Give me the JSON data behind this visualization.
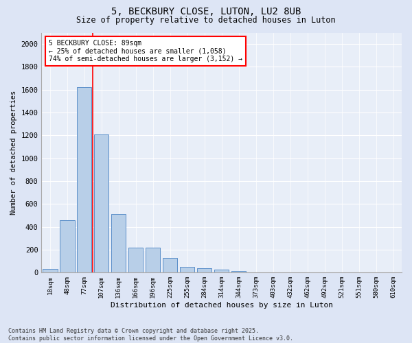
{
  "title1": "5, BECKBURY CLOSE, LUTON, LU2 8UB",
  "title2": "Size of property relative to detached houses in Luton",
  "xlabel": "Distribution of detached houses by size in Luton",
  "ylabel": "Number of detached properties",
  "categories": [
    "18sqm",
    "48sqm",
    "77sqm",
    "107sqm",
    "136sqm",
    "166sqm",
    "196sqm",
    "225sqm",
    "255sqm",
    "284sqm",
    "314sqm",
    "344sqm",
    "373sqm",
    "403sqm",
    "432sqm",
    "462sqm",
    "492sqm",
    "521sqm",
    "551sqm",
    "580sqm",
    "610sqm"
  ],
  "values": [
    35,
    460,
    1620,
    1210,
    510,
    220,
    220,
    130,
    50,
    40,
    25,
    15,
    0,
    0,
    0,
    0,
    0,
    0,
    0,
    0,
    0
  ],
  "bar_color": "#b8cfe8",
  "bar_edge_color": "#5b8fc9",
  "vline_color": "red",
  "vline_pos": 2.5,
  "annotation_title": "5 BECKBURY CLOSE: 89sqm",
  "annotation_line1": "← 25% of detached houses are smaller (1,058)",
  "annotation_line2": "74% of semi-detached houses are larger (3,152) →",
  "ylim": [
    0,
    2100
  ],
  "yticks": [
    0,
    200,
    400,
    600,
    800,
    1000,
    1200,
    1400,
    1600,
    1800,
    2000
  ],
  "footer1": "Contains HM Land Registry data © Crown copyright and database right 2025.",
  "footer2": "Contains public sector information licensed under the Open Government Licence v3.0.",
  "bg_color": "#dde5f5",
  "plot_bg_color": "#e8eef8"
}
